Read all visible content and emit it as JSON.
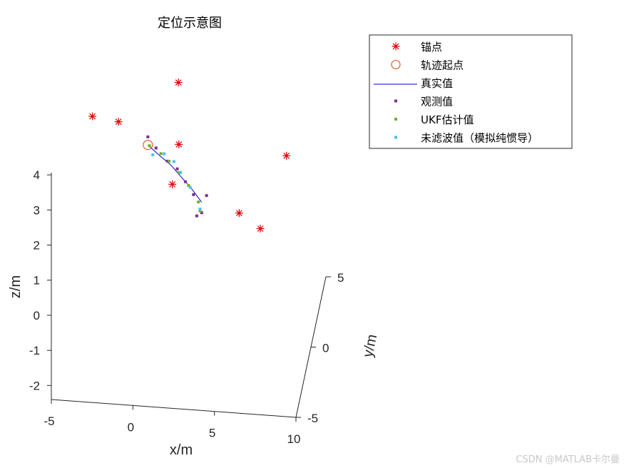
{
  "chart_data": {
    "type": "scatter3d",
    "title": "定位示意图",
    "xlabel": "x/m",
    "ylabel": "y/m",
    "zlabel": "z/m",
    "xlim": [
      -5,
      10
    ],
    "ylim": [
      -5,
      5
    ],
    "zlim": [
      -2.4,
      4
    ],
    "xticks": [
      "-5",
      "0",
      "5",
      "10"
    ],
    "yticks": [
      "-5",
      "0",
      "5"
    ],
    "zticks": [
      "-2",
      "-1",
      "0",
      "1",
      "2",
      "3",
      "4"
    ],
    "grid": false,
    "legend_position": "top-right",
    "colors": {
      "anchor": "#e00000",
      "start": "#d95319",
      "truth": "#0000cc",
      "observed": "#7e2f8e",
      "ukf": "#77ac30",
      "unfiltered": "#4dbeee"
    },
    "legend": [
      {
        "label": "锚点",
        "marker": "star",
        "color": "#e00000"
      },
      {
        "label": "轨迹起点",
        "marker": "circle",
        "color": "#d95319"
      },
      {
        "label": "真实值",
        "marker": "line",
        "color": "#0000cc"
      },
      {
        "label": "观测值",
        "marker": "square",
        "color": "#7e2f8e"
      },
      {
        "label": "UKF估计值",
        "marker": "square",
        "color": "#77ac30"
      },
      {
        "label": "未滤波值（模拟纯惯导）",
        "marker": "square",
        "color": "#4dbeee"
      }
    ],
    "anchors": [
      {
        "x": -3.4,
        "y": 0,
        "z": 3.72
      },
      {
        "x": -1.8,
        "y": 0,
        "z": 3.62
      },
      {
        "x": 1.8,
        "y": 0.4,
        "z": 4.7
      },
      {
        "x": 1.9,
        "y": 0,
        "z": 3.1
      },
      {
        "x": 1.5,
        "y": 0,
        "z": 1.95
      },
      {
        "x": 8.5,
        "y": 0,
        "z": 3.0
      },
      {
        "x": 5.6,
        "y": 0,
        "z": 1.27
      },
      {
        "x": 6.9,
        "y": 0,
        "z": 0.87
      }
    ],
    "trajectory_start": {
      "x": 0.0,
      "y": 0,
      "z": 3.02
    },
    "truth": [
      {
        "x": 0.0,
        "y": 0,
        "z": 3.02
      },
      {
        "x": 0.7,
        "y": 0,
        "z": 2.75
      },
      {
        "x": 1.4,
        "y": 0,
        "z": 2.5
      },
      {
        "x": 2.1,
        "y": 0,
        "z": 2.15
      },
      {
        "x": 2.7,
        "y": 0,
        "z": 1.85
      },
      {
        "x": 3.3,
        "y": 0,
        "z": 1.5
      }
    ],
    "observed": [
      {
        "x": 0.0,
        "y": 0,
        "z": 3.25
      },
      {
        "x": 0.5,
        "y": 0,
        "z": 2.95
      },
      {
        "x": 1.2,
        "y": 0,
        "z": 2.6
      },
      {
        "x": 1.8,
        "y": 0,
        "z": 2.4
      },
      {
        "x": 2.3,
        "y": 0,
        "z": 2.05
      },
      {
        "x": 2.8,
        "y": 0,
        "z": 1.7
      },
      {
        "x": 3.6,
        "y": 0,
        "z": 1.7
      },
      {
        "x": 3.0,
        "y": 0,
        "z": 1.1
      },
      {
        "x": 3.3,
        "y": 0,
        "z": 1.2
      }
    ],
    "ukf": [
      {
        "x": 0.1,
        "y": 0,
        "z": 3.0
      },
      {
        "x": 0.8,
        "y": 0,
        "z": 2.8
      },
      {
        "x": 1.3,
        "y": 0,
        "z": 2.6
      },
      {
        "x": 1.9,
        "y": 0,
        "z": 2.3
      },
      {
        "x": 2.5,
        "y": 0,
        "z": 1.95
      },
      {
        "x": 3.1,
        "y": 0,
        "z": 1.5
      },
      {
        "x": 3.2,
        "y": 0,
        "z": 1.25
      }
    ],
    "unfiltered": [
      {
        "x": 0.3,
        "y": 0,
        "z": 2.75
      },
      {
        "x": 1.0,
        "y": 0,
        "z": 2.8
      },
      {
        "x": 1.6,
        "y": 0,
        "z": 2.6
      },
      {
        "x": 2.0,
        "y": 0,
        "z": 2.3
      },
      {
        "x": 2.6,
        "y": 0,
        "z": 1.9
      },
      {
        "x": 3.2,
        "y": 0,
        "z": 1.3
      }
    ]
  },
  "watermark": "CSDN @MATLAB卡尔曼"
}
